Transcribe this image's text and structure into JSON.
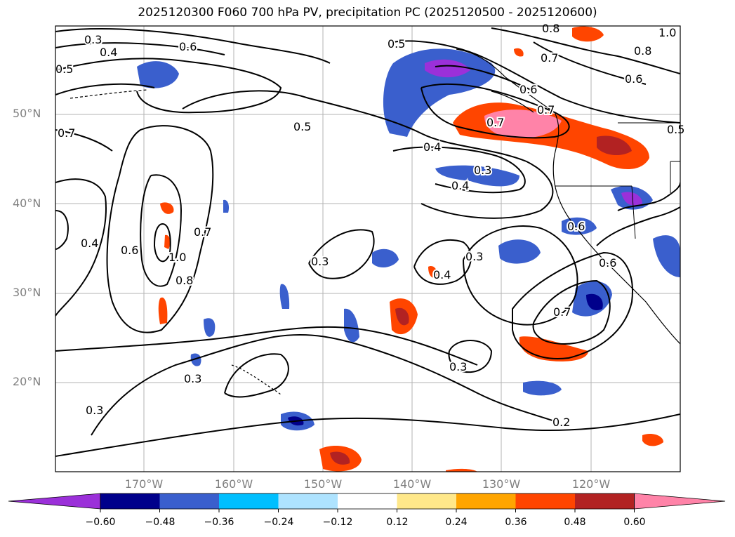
{
  "title": "2025120300 F060 700 hPa PV, precipitation PC (2025120500 - 2025120600)",
  "latitude_labels": [
    "50°N",
    "40°N",
    "30°N",
    "20°N"
  ],
  "longitude_labels": [
    "170°W",
    "160°W",
    "150°W",
    "140°W",
    "130°W",
    "120°W"
  ],
  "contour_labels": [
    "0.3",
    "0.4",
    "0.6",
    "0.5",
    "0.7",
    "0.5",
    "0.4",
    "0.3",
    "0.4",
    "0.5",
    "0.7",
    "0.6",
    "0.8",
    "0.7",
    "0.8",
    "0.6",
    "0.7",
    "0.6",
    "1.0",
    "0.4",
    "0.6",
    "0.7",
    "1.0",
    "0.8",
    "0.3",
    "0.4",
    "0.3",
    "0.6",
    "0.7",
    "0.3",
    "0.3",
    "0.3",
    "0.2",
    "0.5"
  ],
  "colorbar": {
    "tick_labels": [
      "−0.60",
      "−0.48",
      "−0.36",
      "−0.24",
      "−0.12",
      "0.12",
      "0.24",
      "0.36",
      "0.48",
      "0.60"
    ],
    "colors": [
      "#9b30d9",
      "#00008b",
      "#3a5fcd",
      "#00bfff",
      "#aee3ff",
      "#ffffff",
      "#ffe88a",
      "#ffa500",
      "#ff4500",
      "#b22222",
      "#ff83a8"
    ]
  }
}
